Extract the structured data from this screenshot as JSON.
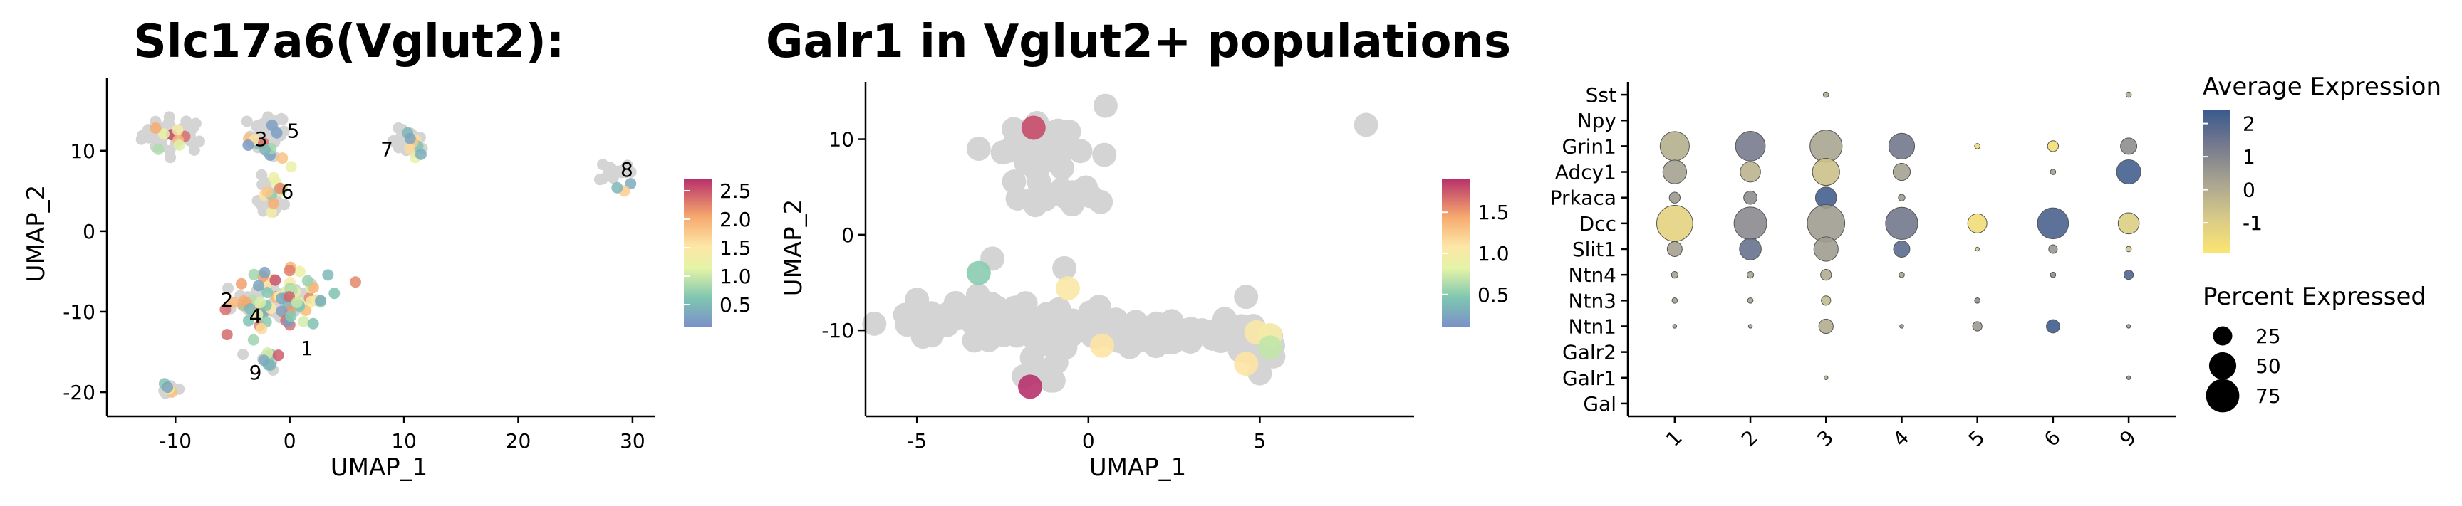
{
  "chart_data": [
    {
      "type": "scatter",
      "title": "Slc17a6(Vglut2):",
      "xlabel": "UMAP_1",
      "ylabel": "UMAP_2",
      "xlim": [
        -16,
        32
      ],
      "ylim": [
        -23,
        19
      ],
      "xticks": [
        -10,
        0,
        10,
        20,
        30
      ],
      "yticks": [
        -20,
        -10,
        0,
        10
      ],
      "colorbar": {
        "min": 0.1,
        "max": 2.7,
        "ticks": [
          0.5,
          1.0,
          1.5,
          2.0,
          2.5
        ],
        "tick_labels": [
          "0.5",
          "1.0",
          "1.5",
          "2.0",
          "2.5"
        ]
      },
      "cluster_labels": [
        {
          "text": "1",
          "x": 1.5,
          "y": -14.5
        },
        {
          "text": "2",
          "x": -5.5,
          "y": -8.5
        },
        {
          "text": "3",
          "x": -2.5,
          "y": 11.5
        },
        {
          "text": "4",
          "x": -3.0,
          "y": -10.5
        },
        {
          "text": "5",
          "x": 0.3,
          "y": 12.5
        },
        {
          "text": "6",
          "x": -0.2,
          "y": 5.0
        },
        {
          "text": "7",
          "x": 8.5,
          "y": 10.2
        },
        {
          "text": "8",
          "x": 29.5,
          "y": 7.7
        },
        {
          "text": "9",
          "x": -3.0,
          "y": -17.5
        }
      ],
      "gray_clusters": [
        {
          "cx": -10.0,
          "cy": 12.0,
          "sx": 2.4,
          "sy": 1.8,
          "n": 40
        },
        {
          "cx": -2.0,
          "cy": 12.0,
          "sx": 1.4,
          "sy": 2.2,
          "n": 30
        },
        {
          "cx": -2.0,
          "cy": 4.0,
          "sx": 1.2,
          "sy": 2.0,
          "n": 20
        },
        {
          "cx": 10.5,
          "cy": 11.0,
          "sx": 1.4,
          "sy": 1.4,
          "n": 16
        },
        {
          "cx": 28.5,
          "cy": 7.5,
          "sx": 1.2,
          "sy": 1.2,
          "n": 16
        },
        {
          "cx": -1.0,
          "cy": -8.5,
          "sx": 3.2,
          "sy": 2.2,
          "n": 50
        },
        {
          "cx": -2.0,
          "cy": -16.0,
          "sx": 1.0,
          "sy": 1.0,
          "n": 8
        },
        {
          "cx": -10.5,
          "cy": -19.5,
          "sx": 0.6,
          "sy": 0.5,
          "n": 6
        }
      ],
      "expressing_clusters": [
        {
          "cx": -2.0,
          "cy": 11.0,
          "sx": 1.3,
          "sy": 2.5,
          "n": 12
        },
        {
          "cx": -1.5,
          "cy": 4.5,
          "sx": 1.0,
          "sy": 2.0,
          "n": 10
        },
        {
          "cx": 10.5,
          "cy": 11.0,
          "sx": 1.0,
          "sy": 1.5,
          "n": 8
        },
        {
          "cx": -10.0,
          "cy": 12.0,
          "sx": 2.0,
          "sy": 1.5,
          "n": 8
        },
        {
          "cx": 29.0,
          "cy": 6.0,
          "sx": 0.8,
          "sy": 0.8,
          "n": 3
        },
        {
          "cx": -1.0,
          "cy": -8.5,
          "sx": 3.5,
          "sy": 2.5,
          "n": 75
        },
        {
          "cx": -1.5,
          "cy": -16.0,
          "sx": 0.8,
          "sy": 1.2,
          "n": 6
        },
        {
          "cx": -10.5,
          "cy": -19.5,
          "sx": 0.6,
          "sy": 0.5,
          "n": 4
        }
      ]
    },
    {
      "type": "scatter",
      "title": "Galr1 in Vglut2+ populations",
      "xlabel": "UMAP_1",
      "ylabel": "UMAP_2",
      "xlim": [
        -6.5,
        9.5
      ],
      "ylim": [
        -19,
        16
      ],
      "xticks": [
        -5,
        0,
        5
      ],
      "yticks": [
        -10,
        0,
        10
      ],
      "colorbar": {
        "min": 0.1,
        "max": 1.9,
        "ticks": [
          0.5,
          1.0,
          1.5
        ],
        "tick_labels": [
          "0.5",
          "1.0",
          "1.5"
        ]
      },
      "gray_clusters": [
        {
          "cx": -1.5,
          "cy": 9.0,
          "sx": 1.0,
          "sy": 2.8,
          "n": 45
        },
        {
          "cx": -1.0,
          "cy": 4.0,
          "sx": 1.2,
          "sy": 1.0,
          "n": 20
        },
        {
          "cx": -3.5,
          "cy": -8.5,
          "sx": 1.8,
          "sy": 1.5,
          "n": 60
        },
        {
          "cx": 0.0,
          "cy": -10.0,
          "sx": 2.0,
          "sy": 1.3,
          "n": 70
        },
        {
          "cx": 3.5,
          "cy": -10.5,
          "sx": 1.5,
          "sy": 1.2,
          "n": 40
        },
        {
          "cx": 4.8,
          "cy": -12.5,
          "sx": 0.6,
          "sy": 1.0,
          "n": 12
        },
        {
          "cx": -1.5,
          "cy": -14.0,
          "sx": 0.7,
          "sy": 1.0,
          "n": 10
        }
      ],
      "gray_points": [
        {
          "x": 8.1,
          "y": 11.5
        },
        {
          "x": -3.2,
          "y": 9.0
        },
        {
          "x": 0.5,
          "y": 13.5
        },
        {
          "x": -5.0,
          "y": -6.8
        },
        {
          "x": 4.6,
          "y": -6.5
        },
        {
          "x": -2.8,
          "y": -2.5
        },
        {
          "x": 5.0,
          "y": -14.5
        },
        {
          "x": -0.7,
          "y": -3.5
        }
      ],
      "points": [
        {
          "x": -1.6,
          "y": 11.2,
          "value": 1.8
        },
        {
          "x": -3.2,
          "y": -4.0,
          "value": 0.5
        },
        {
          "x": -0.6,
          "y": -5.6,
          "value": 1.05
        },
        {
          "x": 0.4,
          "y": -11.6,
          "value": 1.1
        },
        {
          "x": 4.9,
          "y": -10.2,
          "value": 1.05
        },
        {
          "x": 5.3,
          "y": -10.5,
          "value": 1.0
        },
        {
          "x": 5.3,
          "y": -11.8,
          "value": 0.7
        },
        {
          "x": 4.6,
          "y": -13.5,
          "value": 1.1
        },
        {
          "x": -1.7,
          "y": -15.9,
          "value": 1.9
        }
      ]
    },
    {
      "type": "dot",
      "categories": [
        "1",
        "2",
        "3",
        "4",
        "5",
        "6",
        "9"
      ],
      "genes": [
        "Sst",
        "Npy",
        "Grin1",
        "Adcy1",
        "Prkaca",
        "Dcc",
        "Slit1",
        "Ntn4",
        "Ntn3",
        "Ntn1",
        "Galr2",
        "Galr1",
        "Gal"
      ],
      "pct_expressed": [
        [
          0,
          0,
          2,
          0,
          0,
          0,
          2
        ],
        [
          0,
          0,
          0,
          0,
          0,
          0,
          0
        ],
        [
          58,
          60,
          70,
          45,
          2,
          8,
          18
        ],
        [
          38,
          28,
          50,
          20,
          0,
          2,
          40
        ],
        [
          8,
          12,
          30,
          3,
          0,
          0,
          0
        ],
        [
          88,
          72,
          95,
          70,
          25,
          65,
          30
        ],
        [
          15,
          32,
          40,
          18,
          1,
          5,
          2
        ],
        [
          3,
          3,
          8,
          2,
          0,
          2,
          6
        ],
        [
          2,
          2,
          6,
          0,
          2,
          0,
          0
        ],
        [
          1,
          1,
          14,
          1,
          6,
          12,
          1
        ],
        [
          0,
          0,
          0,
          0,
          0,
          0,
          0
        ],
        [
          0,
          0,
          1,
          0,
          0,
          0,
          1
        ],
        [
          0,
          0,
          0,
          0,
          0,
          0,
          0
        ]
      ],
      "avg_expression": [
        [
          0,
          0,
          0,
          0,
          0,
          0,
          0
        ],
        [
          0,
          0,
          0,
          0,
          0,
          0,
          0
        ],
        [
          -0.1,
          1.3,
          0.2,
          1.4,
          -1.5,
          -1.7,
          0.8
        ],
        [
          0.3,
          -0.2,
          -0.6,
          0.3,
          0,
          0.3,
          2.2
        ],
        [
          0.5,
          0.8,
          2.2,
          0.4,
          0,
          0,
          0
        ],
        [
          -1.2,
          0.9,
          0.4,
          1.4,
          -1.6,
          2.1,
          -1.0
        ],
        [
          0.3,
          1.6,
          0.4,
          1.8,
          -1.0,
          0.6,
          -0.8
        ],
        [
          0.3,
          0.2,
          0,
          0.2,
          0,
          0.8,
          2.0
        ],
        [
          0.3,
          0.2,
          -0.4,
          0,
          0.8,
          0,
          0
        ],
        [
          0.4,
          0.3,
          0,
          0.5,
          0.5,
          2.3,
          0.5
        ],
        [
          0,
          0,
          0,
          0,
          0,
          0,
          0
        ],
        [
          0,
          0,
          0,
          0,
          0,
          0,
          0.8
        ],
        [
          0,
          0,
          0,
          0,
          0,
          0,
          0
        ]
      ],
      "color_legend": {
        "title": "Average Expression",
        "min": -1.9,
        "max": 2.4,
        "ticks": [
          2,
          1,
          0,
          -1
        ],
        "tick_labels": [
          "2",
          "1",
          "0",
          "-1"
        ]
      },
      "size_legend": {
        "title": "Percent Expressed",
        "values": [
          25,
          50,
          75
        ],
        "labels": [
          "25",
          "50",
          "75"
        ]
      }
    }
  ]
}
